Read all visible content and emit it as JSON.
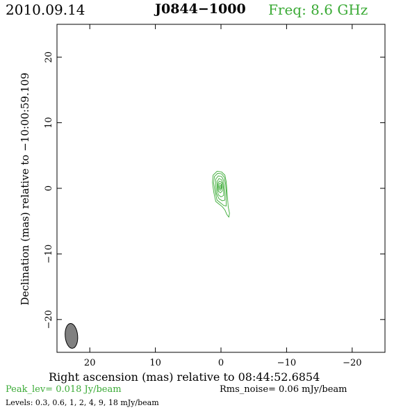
{
  "header": {
    "date": "2010.09.14",
    "source": "J0844−1000",
    "frequency": "Freq: 8.6 GHz"
  },
  "chart_data": {
    "type": "contour",
    "xlabel": "Right ascension (mas) relative to 08:44:52.6854",
    "ylabel": "Declination (mas) relative to −10:00:59.109",
    "xlim": [
      25,
      -25
    ],
    "ylim": [
      -25,
      25
    ],
    "xticks": [
      20,
      10,
      0,
      -10,
      -20
    ],
    "yticks": [
      20,
      10,
      0,
      -10,
      -20
    ],
    "xtick_labels": [
      "20",
      "10",
      "0",
      "−10",
      "−20"
    ],
    "ytick_labels": [
      "20",
      "10",
      "0",
      "−10",
      "−20"
    ],
    "contour_color": "#3aaa35",
    "contours": [
      {
        "level": 0.3,
        "points": [
          [
            0.6,
            2.6
          ],
          [
            -0.1,
            2.5
          ],
          [
            -0.6,
            2.0
          ],
          [
            -0.8,
            1.0
          ],
          [
            -0.9,
            -0.3
          ],
          [
            -1.0,
            -1.5
          ],
          [
            -1.1,
            -2.8
          ],
          [
            -1.3,
            -3.8
          ],
          [
            -1.2,
            -4.4
          ],
          [
            -0.9,
            -4.0
          ],
          [
            -0.6,
            -3.3
          ],
          [
            -0.2,
            -2.8
          ],
          [
            0.3,
            -2.4
          ],
          [
            0.8,
            -2.0
          ],
          [
            1.1,
            -0.6
          ],
          [
            1.3,
            0.9
          ],
          [
            1.2,
            2.0
          ]
        ]
      },
      {
        "level": 0.6,
        "points": [
          [
            0.5,
            2.3
          ],
          [
            -0.1,
            2.2
          ],
          [
            -0.5,
            1.7
          ],
          [
            -0.7,
            0.7
          ],
          [
            -0.8,
            -0.5
          ],
          [
            -0.8,
            -1.7
          ],
          [
            -0.8,
            -2.7
          ],
          [
            -0.4,
            -2.6
          ],
          [
            0.1,
            -2.2
          ],
          [
            0.6,
            -1.8
          ],
          [
            0.9,
            -0.5
          ],
          [
            1.1,
            0.8
          ],
          [
            1.0,
            1.8
          ]
        ]
      },
      {
        "level": 1,
        "points": [
          [
            0.4,
            1.9
          ],
          [
            -0.1,
            1.8
          ],
          [
            -0.4,
            1.2
          ],
          [
            -0.5,
            0.2
          ],
          [
            -0.6,
            -0.8
          ],
          [
            -0.6,
            -1.8
          ],
          [
            -0.2,
            -1.9
          ],
          [
            0.3,
            -1.6
          ],
          [
            0.7,
            -0.8
          ],
          [
            0.8,
            0.4
          ],
          [
            0.8,
            1.4
          ]
        ]
      },
      {
        "level": 2,
        "points": [
          [
            0.3,
            1.5
          ],
          [
            -0.1,
            1.3
          ],
          [
            -0.3,
            0.7
          ],
          [
            -0.4,
            -0.2
          ],
          [
            -0.4,
            -1.1
          ],
          [
            0.0,
            -1.3
          ],
          [
            0.4,
            -1.0
          ],
          [
            0.6,
            -0.1
          ],
          [
            0.6,
            1.0
          ]
        ]
      },
      {
        "level": 4,
        "points": [
          [
            0.2,
            1.1
          ],
          [
            -0.1,
            0.9
          ],
          [
            -0.2,
            0.3
          ],
          [
            -0.2,
            -0.4
          ],
          [
            0.1,
            -0.7
          ],
          [
            0.4,
            -0.4
          ],
          [
            0.5,
            0.4
          ],
          [
            0.4,
            0.9
          ]
        ]
      },
      {
        "level": 9,
        "points": [
          [
            0.15,
            0.75
          ],
          [
            -0.05,
            0.6
          ],
          [
            -0.1,
            0.1
          ],
          [
            0.05,
            -0.3
          ],
          [
            0.3,
            -0.2
          ],
          [
            0.35,
            0.35
          ],
          [
            0.3,
            0.7
          ]
        ]
      },
      {
        "level": 18,
        "points": [
          [
            0.1,
            0.45
          ],
          [
            0.0,
            0.3
          ],
          [
            0.0,
            0.05
          ],
          [
            0.12,
            -0.05
          ],
          [
            0.22,
            0.1
          ],
          [
            0.22,
            0.35
          ]
        ]
      }
    ],
    "beam": {
      "x": 22.8,
      "y": -22.5,
      "major_mas": 3.8,
      "minor_mas": 1.9,
      "pa_deg": -5,
      "color": "#808080"
    }
  },
  "footer": {
    "peak": "Peak_lev=  0.018 Jy/beam",
    "rms": "Rms_noise= 0.06 mJy/beam",
    "levels": "Levels: 0.3, 0.6,    1,    2,    4,    9,   18 mJy/beam"
  }
}
